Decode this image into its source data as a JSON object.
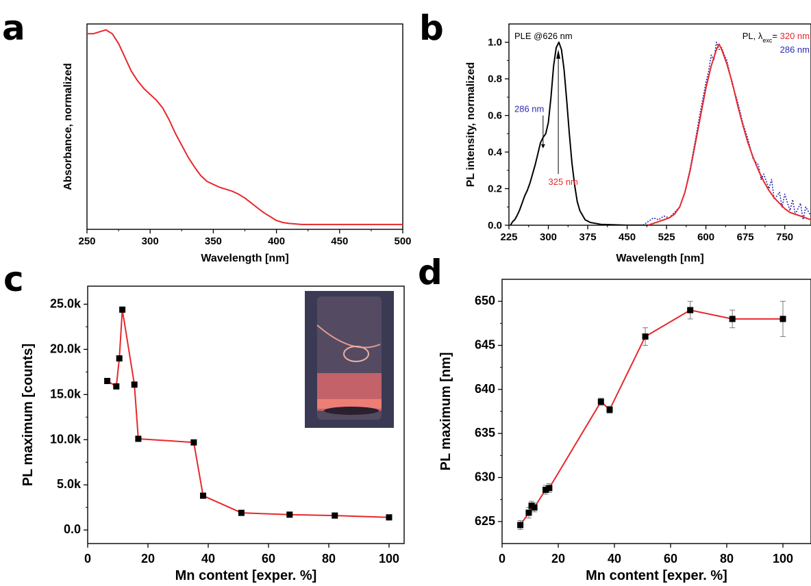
{
  "panels": {
    "a": "a",
    "b": "b",
    "c": "c",
    "d": "d"
  },
  "colors": {
    "red": "#e8262a",
    "blue": "#2b2bb0",
    "black": "#000000",
    "photo_bg": "#3a3a55",
    "photo_glow": "#e86a6a"
  },
  "chart_data": [
    {
      "id": "a",
      "type": "line",
      "xlabel": "Wavelength [nm]",
      "ylabel": "Absorbance, normalized",
      "xlim": [
        250,
        500
      ],
      "ylim": [
        0,
        1.05
      ],
      "xticks": [
        250,
        300,
        350,
        400,
        450,
        500
      ],
      "show_y_ticks": false,
      "series": [
        {
          "color": "#e8262a",
          "x": [
            250,
            255,
            260,
            265,
            270,
            275,
            280,
            285,
            290,
            295,
            300,
            305,
            310,
            315,
            320,
            325,
            330,
            335,
            340,
            345,
            350,
            355,
            360,
            365,
            370,
            375,
            380,
            385,
            390,
            395,
            400,
            405,
            410,
            420,
            430,
            440,
            450,
            460,
            470,
            480,
            490,
            500
          ],
          "y": [
            1.0,
            1.0,
            1.01,
            1.02,
            1.0,
            0.95,
            0.88,
            0.81,
            0.76,
            0.72,
            0.69,
            0.66,
            0.62,
            0.56,
            0.49,
            0.43,
            0.37,
            0.32,
            0.275,
            0.245,
            0.23,
            0.215,
            0.205,
            0.195,
            0.18,
            0.16,
            0.135,
            0.11,
            0.085,
            0.065,
            0.045,
            0.035,
            0.03,
            0.025,
            0.025,
            0.025,
            0.025,
            0.025,
            0.025,
            0.025,
            0.025,
            0.025
          ]
        }
      ]
    },
    {
      "id": "b",
      "type": "line",
      "xlabel": "Wavelength [nm]",
      "ylabel": "PL intensity, normalized",
      "xlim": [
        225,
        800
      ],
      "ylim": [
        0,
        1.1
      ],
      "xticks": [
        225,
        300,
        375,
        450,
        525,
        600,
        675,
        750
      ],
      "yticks": [
        0.0,
        0.2,
        0.4,
        0.6,
        0.8,
        1.0
      ],
      "ytick_labels": [
        "0.0",
        "0.2",
        "0.4",
        "0.6",
        "0.8",
        "1.0"
      ],
      "annotations": {
        "ple_label": "PLE @626 nm",
        "pl_label_prefix": "PL, λ",
        "pl_label_sub": "exc",
        "pl_label_eq": "= ",
        "pl_red_wl": "320 nm",
        "pl_blue_wl": "286 nm",
        "arrow1_label": "286 nm",
        "arrow2_label": "325 nm"
      },
      "series": [
        {
          "name": "PLE @626 nm",
          "color": "#000000",
          "x": [
            228,
            232,
            236,
            240,
            245,
            250,
            255,
            260,
            265,
            270,
            275,
            280,
            285,
            290,
            295,
            300,
            305,
            310,
            315,
            320,
            325,
            330,
            335,
            340,
            345,
            350,
            355,
            360,
            370,
            380,
            390,
            400,
            420,
            450,
            480,
            490
          ],
          "y": [
            0.0,
            0.02,
            0.03,
            0.05,
            0.08,
            0.12,
            0.16,
            0.19,
            0.23,
            0.28,
            0.33,
            0.39,
            0.45,
            0.48,
            0.5,
            0.56,
            0.7,
            0.87,
            0.97,
            1.0,
            0.96,
            0.85,
            0.68,
            0.5,
            0.34,
            0.22,
            0.13,
            0.08,
            0.03,
            0.015,
            0.01,
            0.005,
            0.003,
            0.0,
            0.0,
            0.0
          ]
        },
        {
          "name": "320 nm",
          "color": "#e8262a",
          "x": [
            490,
            500,
            510,
            520,
            530,
            540,
            550,
            560,
            570,
            580,
            590,
            600,
            610,
            620,
            625,
            630,
            640,
            650,
            660,
            670,
            680,
            690,
            700,
            710,
            720,
            730,
            740,
            750,
            760,
            770,
            780,
            790,
            800
          ],
          "y": [
            0.0,
            0.01,
            0.02,
            0.03,
            0.04,
            0.06,
            0.1,
            0.18,
            0.3,
            0.45,
            0.6,
            0.75,
            0.87,
            0.96,
            0.99,
            0.96,
            0.88,
            0.78,
            0.66,
            0.55,
            0.45,
            0.37,
            0.3,
            0.24,
            0.19,
            0.15,
            0.12,
            0.09,
            0.07,
            0.06,
            0.05,
            0.04,
            0.03
          ]
        },
        {
          "name": "286 nm",
          "color": "#2b2bb0",
          "x": [
            480,
            490,
            500,
            510,
            520,
            530,
            540,
            550,
            560,
            570,
            580,
            590,
            600,
            605,
            610,
            615,
            620,
            625,
            630,
            635,
            640,
            650,
            660,
            670,
            680,
            690,
            700,
            705,
            710,
            720,
            725,
            730,
            740,
            745,
            750,
            760,
            765,
            770,
            780,
            785,
            790,
            800
          ],
          "y": [
            0.0,
            0.02,
            0.04,
            0.03,
            0.05,
            0.04,
            0.07,
            0.1,
            0.18,
            0.31,
            0.47,
            0.63,
            0.78,
            0.84,
            0.93,
            0.9,
            1.0,
            0.96,
            0.97,
            0.93,
            0.9,
            0.77,
            0.68,
            0.56,
            0.47,
            0.36,
            0.33,
            0.25,
            0.28,
            0.2,
            0.25,
            0.14,
            0.18,
            0.1,
            0.17,
            0.08,
            0.14,
            0.06,
            0.12,
            0.03,
            0.1,
            0.05
          ]
        }
      ]
    },
    {
      "id": "c",
      "type": "scatter",
      "xlabel": "Mn content [exper. %]",
      "ylabel": "PL maximum [counts]",
      "xlim": [
        0,
        105
      ],
      "ylim": [
        -1500,
        27000
      ],
      "xticks": [
        0,
        20,
        40,
        60,
        80,
        100
      ],
      "yticks": [
        0,
        5000,
        10000,
        15000,
        20000,
        25000
      ],
      "ytick_labels": [
        "0.0",
        "5.0k",
        "10.0k",
        "15.0k",
        "20.0k",
        "25.0k"
      ],
      "has_inset_photo": true,
      "series": [
        {
          "color": "#e8262a",
          "marker_color": "#000000",
          "x": [
            6.5,
            9.5,
            10.5,
            11.5,
            15.5,
            16.8,
            35.2,
            38.3,
            51.0,
            67.0,
            82.0,
            100.0
          ],
          "y": [
            16500,
            15900,
            19000,
            24400,
            16100,
            10100,
            9700,
            3800,
            1900,
            1700,
            1600,
            1400
          ]
        }
      ]
    },
    {
      "id": "d",
      "type": "scatter",
      "xlabel": "Mn content [exper. %]",
      "ylabel": "PL maximum [nm]",
      "xlim": [
        0,
        110
      ],
      "ylim": [
        622.5,
        652.5
      ],
      "xticks": [
        0,
        20,
        40,
        60,
        80,
        100
      ],
      "yticks": [
        625,
        630,
        635,
        640,
        645,
        650
      ],
      "ytick_labels": [
        "625",
        "630",
        "635",
        "640",
        "645",
        "650"
      ],
      "series": [
        {
          "color": "#e8262a",
          "marker_color": "#000000",
          "x": [
            6.5,
            9.5,
            10.5,
            11.5,
            15.5,
            16.8,
            35.2,
            38.3,
            51.0,
            67.0,
            82.0,
            100.0
          ],
          "y": [
            624.6,
            626.0,
            626.8,
            626.6,
            628.6,
            628.8,
            638.6,
            637.7,
            646.0,
            649.0,
            648.0,
            648.0
          ],
          "err": [
            0.5,
            0.6,
            0.5,
            0.5,
            0.5,
            0.5,
            0.4,
            0.4,
            1.0,
            1.0,
            1.0,
            2.0
          ]
        }
      ]
    }
  ]
}
